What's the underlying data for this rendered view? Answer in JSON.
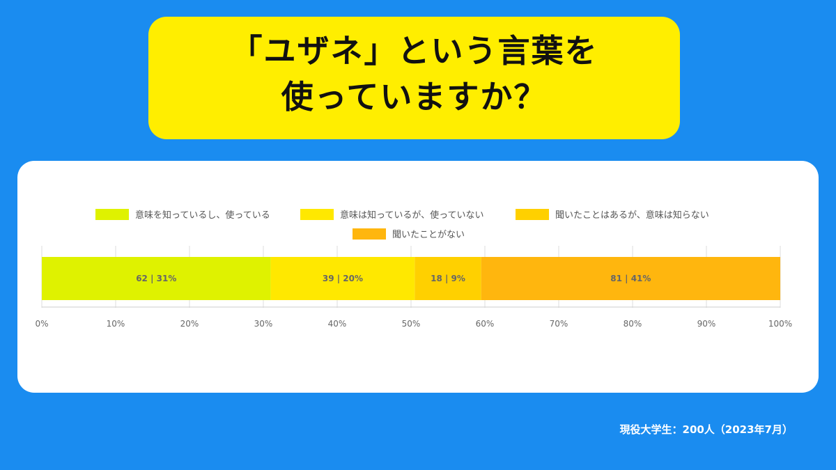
{
  "title": {
    "line1": "「ユザネ」という言葉を",
    "line2": "使っていますか？"
  },
  "footnote": "現役大学生：200人（2023年7月）",
  "chart_data": {
    "type": "bar",
    "orientation": "horizontal-stacked-100",
    "categories": [
      ""
    ],
    "series": [
      {
        "name": "意味を知っているし、使っている",
        "count": 62,
        "percent": 31,
        "label": "62 | 31%",
        "color": "#dff200"
      },
      {
        "name": "意味は知っているが、使っていない",
        "count": 39,
        "percent": 20,
        "label": "39 | 20%",
        "color": "#ffe800"
      },
      {
        "name": "聞いたことはあるが、意味は知らない",
        "count": 18,
        "percent": 9,
        "label": "18 | 9%",
        "color": "#ffd000"
      },
      {
        "name": "聞いたことがない",
        "count": 81,
        "percent": 41,
        "label": "81 | 41%",
        "color": "#ffb60e"
      }
    ],
    "xticks": [
      "0%",
      "10%",
      "20%",
      "30%",
      "40%",
      "50%",
      "60%",
      "70%",
      "80%",
      "90%",
      "100%"
    ],
    "xlim": [
      0,
      100
    ],
    "grid": true,
    "legend_position": "top"
  }
}
